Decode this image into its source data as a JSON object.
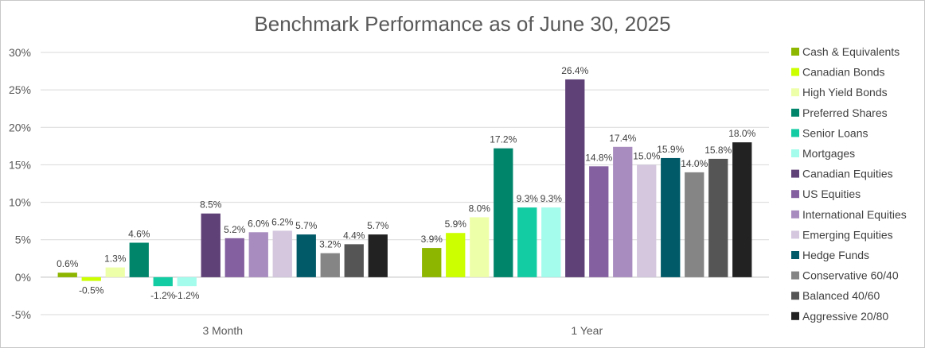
{
  "chart_data": {
    "type": "bar",
    "title": "Benchmark Performance as of June 30, 2025",
    "xlabel": "",
    "ylabel": "",
    "ylim": [
      -5,
      30
    ],
    "yticks": [
      -5,
      0,
      5,
      10,
      15,
      20,
      25,
      30
    ],
    "ytick_format": "percent",
    "grid": true,
    "legend_position": "right",
    "categories": [
      "3 Month",
      "1 Year"
    ],
    "series": [
      {
        "name": "Cash & Equivalents",
        "color": "#8db600",
        "values": [
          0.6,
          3.9
        ],
        "labels": [
          "0.6%",
          "3.9%"
        ]
      },
      {
        "name": "Canadian Bonds",
        "color": "#ccff00",
        "values": [
          -0.5,
          5.9
        ],
        "labels": [
          "-0.5%",
          "5.9%"
        ]
      },
      {
        "name": "High Yield Bonds",
        "color": "#eeffaa",
        "values": [
          1.3,
          8.0
        ],
        "labels": [
          "1.3%",
          "8.0%"
        ]
      },
      {
        "name": "Preferred Shares",
        "color": "#00856b",
        "values": [
          4.6,
          17.2
        ],
        "labels": [
          "4.6%",
          "17.2%"
        ]
      },
      {
        "name": "Senior Loans",
        "color": "#14cca3",
        "values": [
          -1.2,
          9.3
        ],
        "labels": [
          "-1.2%",
          "9.3%"
        ]
      },
      {
        "name": "Mortgages",
        "color": "#a3fcec",
        "values": [
          -1.2,
          9.3
        ],
        "labels": [
          "-1.2%",
          "9.3%"
        ]
      },
      {
        "name": "Canadian Equities",
        "color": "#5f4077",
        "values": [
          8.5,
          26.4
        ],
        "labels": [
          "8.5%",
          "26.4%"
        ]
      },
      {
        "name": "US Equities",
        "color": "#8560a0",
        "values": [
          5.2,
          14.8
        ],
        "labels": [
          "5.2%",
          "14.8%"
        ]
      },
      {
        "name": "International Equities",
        "color": "#a88cc0",
        "values": [
          6.0,
          17.4
        ],
        "labels": [
          "6.0%",
          "17.4%"
        ]
      },
      {
        "name": "Emerging Equities",
        "color": "#d4c7de",
        "values": [
          6.2,
          15.0
        ],
        "labels": [
          "6.2%",
          "15.0%"
        ]
      },
      {
        "name": "Hedge Funds",
        "color": "#005a68",
        "values": [
          5.7,
          15.9
        ],
        "labels": [
          "5.7%",
          "15.9%"
        ]
      },
      {
        "name": "Conservative 60/40",
        "color": "#858585",
        "values": [
          3.2,
          14.0
        ],
        "labels": [
          "3.2%",
          "14.0%"
        ]
      },
      {
        "name": "Balanced 40/60",
        "color": "#555555",
        "values": [
          4.4,
          15.8
        ],
        "labels": [
          "4.4%",
          "15.8%"
        ]
      },
      {
        "name": "Aggressive 20/80",
        "color": "#222222",
        "values": [
          5.7,
          18.0
        ],
        "labels": [
          "5.7%",
          "18.0%"
        ]
      }
    ]
  }
}
